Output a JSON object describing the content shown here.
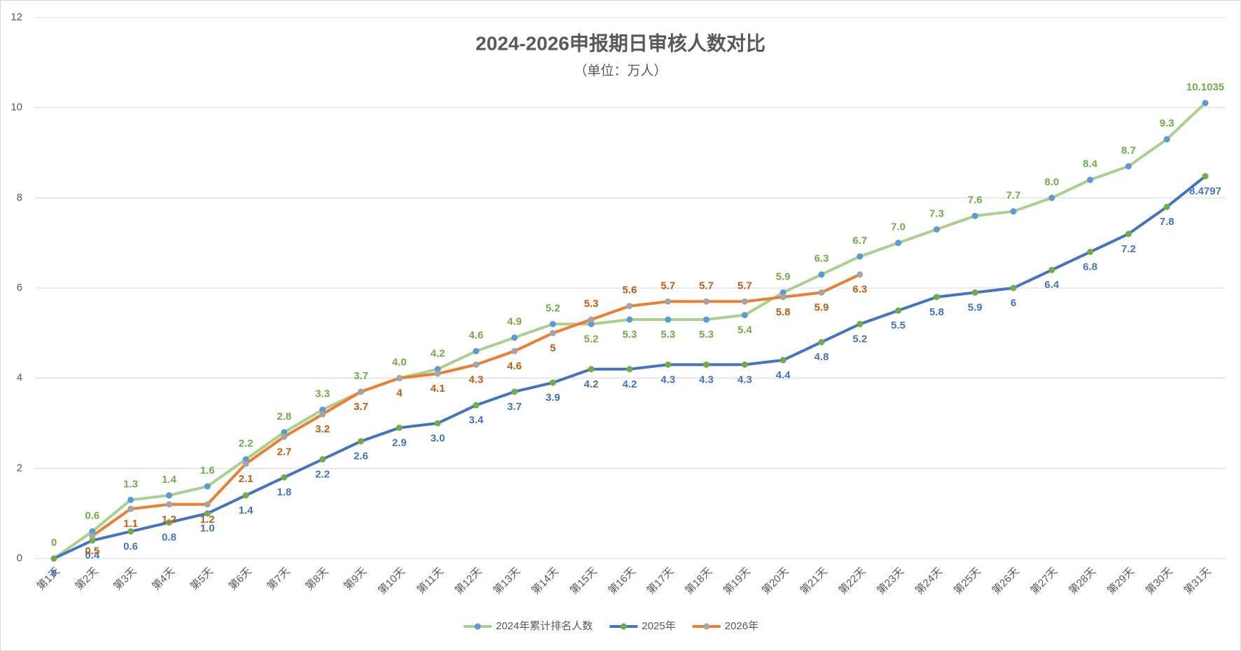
{
  "chart_data": {
    "type": "line",
    "title": "2024-2026申报期日审核人数对比",
    "subtitle": "（单位：万人）",
    "categories": [
      "第1天",
      "第2天",
      "第3天",
      "第4天",
      "第5天",
      "第6天",
      "第7天",
      "第8天",
      "第9天",
      "第10天",
      "第11天",
      "第12天",
      "第13天",
      "第14天",
      "第15天",
      "第16天",
      "第17天",
      "第18天",
      "第19天",
      "第20天",
      "第21天",
      "第22天",
      "第23天",
      "第24天",
      "第25天",
      "第26天",
      "第27天",
      "第28天",
      "第29天",
      "第30天",
      "第31天"
    ],
    "series": [
      {
        "name": "2024年累计排名人数",
        "color": "#a9d18e",
        "marker_color": "#5b9bd5",
        "label_color": "#70ad47",
        "values": [
          0,
          0.6,
          1.3,
          1.4,
          1.6,
          2.2,
          2.8,
          3.3,
          3.7,
          4.0,
          4.2,
          4.6,
          4.9,
          5.2,
          5.2,
          5.3,
          5.3,
          5.3,
          5.4,
          5.9,
          6.3,
          6.7,
          7.0,
          7.3,
          7.6,
          7.7,
          8.0,
          8.4,
          8.7,
          9.3,
          10.1035
        ],
        "value_labels": [
          "0",
          "0.6",
          "1.3",
          "1.4",
          "1.6",
          "2.2",
          "2.8",
          "3.3",
          "3.7",
          "4.0",
          "4.2",
          "4.6",
          "4.9",
          "5.2",
          "5.2",
          "5.3",
          "5.3",
          "5.3",
          "5.4",
          "5.9",
          "6.3",
          "6.7",
          "7.0",
          "7.3",
          "7.6",
          "7.7",
          "8.0",
          "8.4",
          "8.7",
          "9.3",
          "10.1035"
        ]
      },
      {
        "name": "2025年",
        "color": "#4472c4",
        "marker_color": "#70ad47",
        "label_color": "#4472c4",
        "values": [
          0,
          0.4,
          0.6,
          0.8,
          1.0,
          1.4,
          1.8,
          2.2,
          2.6,
          2.9,
          3.0,
          3.4,
          3.7,
          3.9,
          4.2,
          4.2,
          4.3,
          4.3,
          4.3,
          4.4,
          4.8,
          5.2,
          5.5,
          5.8,
          5.9,
          6,
          6.4,
          6.8,
          7.2,
          7.8,
          8.4797
        ],
        "value_labels": [
          "0",
          "0.4",
          "0.6",
          "0.8",
          "1.0",
          "1.4",
          "1.8",
          "2.2",
          "2.6",
          "2.9",
          "3.0",
          "3.4",
          "3.7",
          "3.9",
          "4.2",
          "4.2",
          "4.3",
          "4.3",
          "4.3",
          "4.4",
          "4.8",
          "5.2",
          "5.5",
          "5.8",
          "5.9",
          "6",
          "6.4",
          "6.8",
          "7.2",
          "7.8",
          "8.4797"
        ]
      },
      {
        "name": "2026年",
        "color": "#ed7d31",
        "marker_color": "#a5a5a5",
        "label_color": "#c55a11",
        "values": [
          null,
          0.5,
          1.1,
          1.2,
          1.2,
          2.1,
          2.7,
          3.2,
          3.7,
          4,
          4.1,
          4.3,
          4.6,
          5,
          5.3,
          5.6,
          5.7,
          5.7,
          5.7,
          5.8,
          5.9,
          6.3,
          null,
          null,
          null,
          null,
          null,
          null,
          null,
          null,
          null
        ],
        "value_labels": [
          null,
          "0.5",
          "1.1",
          "1.2",
          "1.2",
          "2.1",
          "2.7",
          "3.2",
          "3.7",
          "4",
          "4.1",
          "4.3",
          "4.6",
          "5",
          "5.3",
          "5.6",
          "5.7",
          "5.7",
          "5.7",
          "5.8",
          "5.9",
          "6.3",
          null,
          null,
          null,
          null,
          null,
          null,
          null,
          null,
          null
        ]
      }
    ],
    "ylim": [
      0,
      12
    ],
    "yticks": [
      0,
      2,
      4,
      6,
      8,
      10,
      12
    ],
    "grid": true,
    "legend": "bottom"
  }
}
